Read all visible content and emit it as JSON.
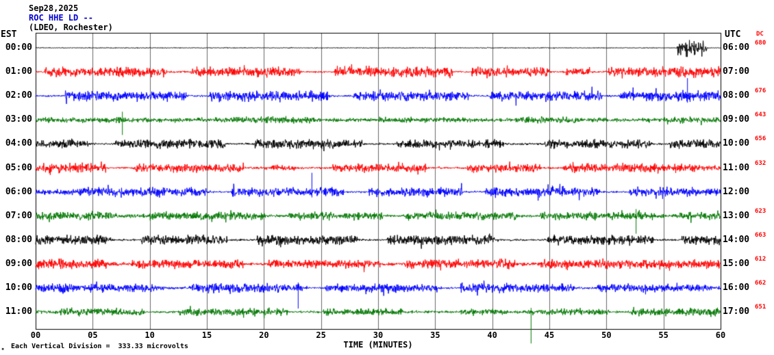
{
  "header": {
    "date": "Sep28,2025",
    "station": "ROC HHE LD --",
    "location": "(LDEO, Rochester)"
  },
  "axes": {
    "left_label": "EST",
    "right_label": "UTC",
    "dc_label": "DC",
    "x_label": "TIME (MINUTES)",
    "x_ticks": [
      "00",
      "05",
      "10",
      "15",
      "20",
      "25",
      "30",
      "35",
      "40",
      "45",
      "50",
      "55",
      "60"
    ]
  },
  "footer": {
    "scale_note": "Each Vertical Division =  333.33 microvolts",
    "corner_mark": "▪"
  },
  "chart_data": {
    "type": "line",
    "subtype": "helicorder-seismogram",
    "title": "ROC HHE LD -- (LDEO, Rochester) Sep28,2025",
    "xlabel": "TIME (MINUTES)",
    "x_range": [
      0,
      60
    ],
    "x_tick_interval": 5,
    "left_time_scale": "EST",
    "right_time_scale": "UTC",
    "vertical_division_microvolts": 333.33,
    "grid": true,
    "palette": {
      "black": "#000000",
      "red": "#ff0000",
      "blue": "#0000ff",
      "green": "#007700"
    },
    "trace_color_cycle": [
      "black",
      "red",
      "blue",
      "green"
    ],
    "rows": [
      {
        "est": "00:00",
        "utc": "06:00",
        "dc": "680",
        "color": "black",
        "envelope_segments": [
          [
            0,
            56.2,
            0.05
          ],
          [
            56.2,
            58.8,
            0.95
          ],
          [
            58.8,
            60,
            0.05
          ]
        ],
        "spikes": []
      },
      {
        "est": "01:00",
        "utc": "07:00",
        "dc": "",
        "color": "red",
        "envelope_segments": [
          [
            0,
            0.8,
            0.1
          ],
          [
            0.8,
            11.5,
            0.55
          ],
          [
            11.5,
            13.6,
            0.12
          ],
          [
            13.6,
            23.2,
            0.6
          ],
          [
            23.2,
            26.2,
            0.12
          ],
          [
            26.2,
            36.5,
            0.6
          ],
          [
            36.5,
            38.2,
            0.12
          ],
          [
            38.2,
            45.0,
            0.55
          ],
          [
            45.0,
            46.4,
            0.12
          ],
          [
            46.4,
            48.6,
            0.45
          ],
          [
            48.6,
            50.2,
            0.12
          ],
          [
            50.2,
            60,
            0.6
          ]
        ],
        "spikes": []
      },
      {
        "est": "02:00",
        "utc": "08:00",
        "dc": "676",
        "color": "blue",
        "envelope_segments": [
          [
            0,
            2.6,
            0.12
          ],
          [
            2.6,
            13.2,
            0.6
          ],
          [
            13.2,
            15.2,
            0.12
          ],
          [
            15.2,
            25.6,
            0.62
          ],
          [
            25.6,
            27.8,
            0.12
          ],
          [
            27.8,
            38.0,
            0.58
          ],
          [
            38.0,
            39.8,
            0.12
          ],
          [
            39.8,
            49.6,
            0.6
          ],
          [
            49.6,
            51.2,
            0.12
          ],
          [
            51.2,
            60,
            0.62
          ]
        ],
        "spikes": [
          [
            57.1,
            26,
            10
          ]
        ]
      },
      {
        "est": "03:00",
        "utc": "09:00",
        "dc": "643",
        "color": "green",
        "envelope_segments": [
          [
            0,
            8.0,
            0.33
          ],
          [
            8.0,
            17.2,
            0.28
          ],
          [
            17.2,
            24.4,
            0.42
          ],
          [
            24.4,
            30.0,
            0.2
          ],
          [
            30.0,
            38.2,
            0.33
          ],
          [
            38.2,
            42.0,
            0.2
          ],
          [
            42.0,
            47.6,
            0.42
          ],
          [
            47.6,
            55.0,
            0.25
          ],
          [
            55.0,
            60,
            0.38
          ]
        ],
        "spikes": [
          [
            7.6,
            12,
            22
          ]
        ]
      },
      {
        "est": "04:00",
        "utc": "10:00",
        "dc": "656",
        "color": "black",
        "envelope_segments": [
          [
            0,
            4.6,
            0.5
          ],
          [
            4.6,
            7.0,
            0.12
          ],
          [
            7.0,
            16.6,
            0.55
          ],
          [
            16.6,
            19.2,
            0.12
          ],
          [
            19.2,
            28.6,
            0.55
          ],
          [
            28.6,
            31.6,
            0.12
          ],
          [
            31.6,
            41.0,
            0.5
          ],
          [
            41.0,
            44.6,
            0.12
          ],
          [
            44.6,
            54.0,
            0.5
          ],
          [
            54.0,
            55.6,
            0.12
          ],
          [
            55.6,
            60,
            0.55
          ]
        ],
        "spikes": []
      },
      {
        "est": "05:00",
        "utc": "11:00",
        "dc": "632",
        "color": "red",
        "envelope_segments": [
          [
            0,
            6.2,
            0.55
          ],
          [
            6.2,
            8.6,
            0.12
          ],
          [
            8.6,
            18.2,
            0.5
          ],
          [
            18.2,
            20.6,
            0.14
          ],
          [
            20.6,
            22.8,
            0.35
          ],
          [
            22.8,
            26.0,
            0.14
          ],
          [
            26.0,
            34.2,
            0.5
          ],
          [
            34.2,
            37.8,
            0.12
          ],
          [
            37.8,
            44.2,
            0.5
          ],
          [
            44.2,
            46.2,
            0.12
          ],
          [
            46.2,
            58.0,
            0.55
          ],
          [
            58.0,
            60,
            0.3
          ]
        ],
        "spikes": []
      },
      {
        "est": "06:00",
        "utc": "12:00",
        "dc": "",
        "color": "blue",
        "envelope_segments": [
          [
            0,
            3.2,
            0.3
          ],
          [
            3.2,
            15.0,
            0.55
          ],
          [
            15.0,
            17.2,
            0.12
          ],
          [
            17.2,
            27.0,
            0.55
          ],
          [
            27.0,
            29.2,
            0.12
          ],
          [
            29.2,
            37.4,
            0.55
          ],
          [
            37.4,
            39.4,
            0.12
          ],
          [
            39.4,
            49.4,
            0.55
          ],
          [
            49.4,
            52.0,
            0.12
          ],
          [
            52.0,
            60,
            0.55
          ]
        ],
        "spikes": [
          [
            24.2,
            28,
            8
          ]
        ]
      },
      {
        "est": "07:00",
        "utc": "13:00",
        "dc": "623",
        "color": "green",
        "envelope_segments": [
          [
            0,
            7.2,
            0.48
          ],
          [
            7.2,
            10.0,
            0.25
          ],
          [
            10.0,
            20.2,
            0.5
          ],
          [
            20.2,
            22.2,
            0.16
          ],
          [
            22.2,
            30.4,
            0.45
          ],
          [
            30.4,
            32.4,
            0.16
          ],
          [
            32.4,
            42.2,
            0.5
          ],
          [
            42.2,
            44.2,
            0.16
          ],
          [
            44.2,
            54.2,
            0.48
          ],
          [
            54.2,
            56.2,
            0.2
          ],
          [
            56.2,
            60,
            0.45
          ]
        ],
        "spikes": [
          [
            52.6,
            10,
            26
          ]
        ]
      },
      {
        "est": "08:00",
        "utc": "14:00",
        "dc": "663",
        "color": "black",
        "envelope_segments": [
          [
            0,
            6.6,
            0.55
          ],
          [
            6.6,
            9.2,
            0.12
          ],
          [
            9.2,
            16.8,
            0.58
          ],
          [
            16.8,
            19.4,
            0.12
          ],
          [
            19.4,
            28.2,
            0.58
          ],
          [
            28.2,
            30.8,
            0.12
          ],
          [
            30.8,
            40.2,
            0.58
          ],
          [
            40.2,
            44.8,
            0.12
          ],
          [
            44.8,
            54.2,
            0.58
          ],
          [
            54.2,
            56.6,
            0.12
          ],
          [
            56.6,
            60,
            0.55
          ]
        ],
        "spikes": []
      },
      {
        "est": "09:00",
        "utc": "15:00",
        "dc": "612",
        "color": "red",
        "envelope_segments": [
          [
            0,
            6.2,
            0.6
          ],
          [
            6.2,
            8.4,
            0.2
          ],
          [
            8.4,
            18.2,
            0.55
          ],
          [
            18.2,
            20.4,
            0.16
          ],
          [
            20.4,
            30.2,
            0.5
          ],
          [
            30.2,
            32.4,
            0.2
          ],
          [
            32.4,
            42.0,
            0.55
          ],
          [
            42.0,
            44.2,
            0.2
          ],
          [
            44.2,
            56.2,
            0.55
          ],
          [
            56.2,
            60,
            0.5
          ]
        ],
        "spikes": []
      },
      {
        "est": "10:00",
        "utc": "16:00",
        "dc": "662",
        "color": "blue",
        "envelope_segments": [
          [
            0,
            11.2,
            0.5
          ],
          [
            11.2,
            13.4,
            0.15
          ],
          [
            13.4,
            23.4,
            0.55
          ],
          [
            23.4,
            25.4,
            0.15
          ],
          [
            25.4,
            35.2,
            0.5
          ],
          [
            35.2,
            37.2,
            0.15
          ],
          [
            37.2,
            47.2,
            0.55
          ],
          [
            47.2,
            49.2,
            0.15
          ],
          [
            49.2,
            59.2,
            0.5
          ],
          [
            59.2,
            60,
            0.2
          ]
        ],
        "spikes": [
          [
            23.0,
            8,
            30
          ]
        ]
      },
      {
        "est": "11:00",
        "utc": "17:00",
        "dc": "651",
        "color": "green",
        "envelope_segments": [
          [
            0,
            2.2,
            0.2
          ],
          [
            2.2,
            9.6,
            0.45
          ],
          [
            9.6,
            12.6,
            0.15
          ],
          [
            12.6,
            22.2,
            0.45
          ],
          [
            22.2,
            25.2,
            0.15
          ],
          [
            25.2,
            32.2,
            0.4
          ],
          [
            32.2,
            37.2,
            0.15
          ],
          [
            37.2,
            41.2,
            0.4
          ],
          [
            41.2,
            43.2,
            0.2
          ],
          [
            43.2,
            50.2,
            0.35
          ],
          [
            50.2,
            52.2,
            0.15
          ],
          [
            52.2,
            60,
            0.45
          ]
        ],
        "spikes": [
          [
            43.4,
            6,
            46
          ]
        ]
      }
    ]
  }
}
